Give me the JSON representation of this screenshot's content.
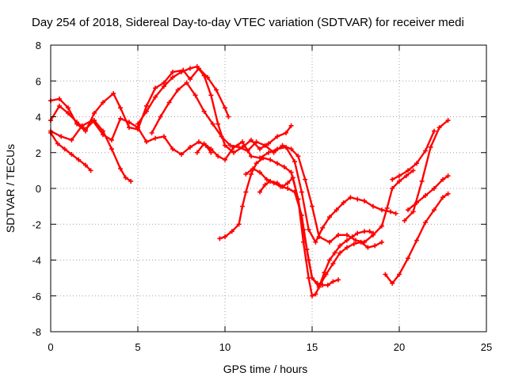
{
  "chart_data": {
    "type": "line",
    "title": "Day 254 of 2018, Sidereal Day-to-day VTEC variation (SDTVAR) for receiver medi",
    "xlabel": "GPS time / hours",
    "ylabel": "SDTVAR / TECUs",
    "xlim": [
      0,
      25
    ],
    "ylim": [
      -8,
      8
    ],
    "x_ticks": [
      "0",
      "5",
      "10",
      "15",
      "20",
      "25"
    ],
    "y_ticks": [
      "-8",
      "-6",
      "-4",
      "-2",
      "0",
      "2",
      "4",
      "6",
      "8"
    ],
    "grid": true,
    "legend": "none",
    "marker": "plus",
    "series_color": "#ff0000",
    "series": [
      {
        "x": [
          0.0,
          0.5,
          1.0,
          1.5,
          2.0,
          2.5,
          3.0,
          3.5,
          4.0,
          4.3,
          4.6
        ],
        "y": [
          3.8,
          4.6,
          4.2,
          3.7,
          3.3,
          3.8,
          3.2,
          2.2,
          1.1,
          0.6,
          0.4
        ]
      },
      {
        "x": [
          0.0,
          0.4,
          0.8,
          1.2,
          1.6,
          2.0,
          2.3
        ],
        "y": [
          3.1,
          2.5,
          2.2,
          1.9,
          1.6,
          1.3,
          1.0
        ]
      },
      {
        "x": [
          0.0,
          0.5,
          1.0,
          1.5,
          2.0,
          2.5,
          3.0,
          3.6,
          4.0,
          4.5,
          5.0,
          5.5,
          6.0,
          6.5,
          7.0,
          7.6,
          8.0,
          8.5,
          9.0,
          9.5,
          10.0,
          10.2
        ],
        "y": [
          4.9,
          5.0,
          4.5,
          3.6,
          3.2,
          4.2,
          4.8,
          5.3,
          4.5,
          3.4,
          3.3,
          4.6,
          5.6,
          5.9,
          6.5,
          6.6,
          6.1,
          6.7,
          6.2,
          5.5,
          4.5,
          4.0
        ]
      },
      {
        "x": [
          0.0,
          0.6,
          1.2,
          1.8,
          2.4,
          3.0,
          3.5,
          4.0,
          4.5,
          5.0,
          5.5,
          6.0,
          6.5,
          7.0,
          7.5,
          8.0,
          8.5,
          8.9,
          9.2
        ],
        "y": [
          3.2,
          2.9,
          2.7,
          3.5,
          3.8,
          3.0,
          2.7,
          3.9,
          3.7,
          3.4,
          2.6,
          2.8,
          2.9,
          2.2,
          1.9,
          2.3,
          2.6,
          2.4,
          2.0
        ]
      },
      {
        "x": [
          5.0,
          5.5,
          6.0,
          6.5,
          7.0,
          7.5,
          8.0,
          8.4,
          8.8,
          9.2,
          9.6,
          10.0,
          10.5,
          11.0,
          11.5,
          12.0,
          12.5,
          13.0,
          13.5,
          13.8
        ],
        "y": [
          3.6,
          4.3,
          5.1,
          5.7,
          6.2,
          6.5,
          6.7,
          6.8,
          6.3,
          5.2,
          3.6,
          2.4,
          2.0,
          2.3,
          2.7,
          2.2,
          2.5,
          2.9,
          3.1,
          3.5
        ]
      },
      {
        "x": [
          5.8,
          6.3,
          6.8,
          7.3,
          7.8,
          8.3,
          8.8,
          9.3,
          9.8,
          10.3,
          10.8,
          11.3,
          11.8,
          12.3,
          12.8,
          13.3,
          13.8,
          14.2,
          14.6,
          15.0,
          15.4,
          16.0,
          16.5,
          17.0,
          17.5,
          18.0,
          18.5,
          19.0,
          19.3,
          19.6,
          20.0,
          20.4,
          20.8
        ],
        "y": [
          3.1,
          4.0,
          4.8,
          5.5,
          5.9,
          5.2,
          4.3,
          3.6,
          2.9,
          2.4,
          2.3,
          2.1,
          2.6,
          2.4,
          2.0,
          2.4,
          2.2,
          1.8,
          0.5,
          -1.0,
          -2.7,
          -3.0,
          -2.6,
          -2.6,
          -2.9,
          -3.0,
          -2.6,
          -2.1,
          -1.1,
          0.0,
          0.4,
          0.7,
          1.0
        ]
      },
      {
        "x": [
          8.4,
          8.8,
          9.2,
          9.6,
          10.0,
          10.5,
          11.0,
          11.5,
          12.0,
          12.5,
          13.0,
          13.5,
          14.0,
          14.4,
          14.8,
          15.2,
          15.6,
          16.0,
          16.4,
          16.8,
          17.2,
          17.6,
          18.0,
          18.5,
          19.0,
          19.5,
          19.8
        ],
        "y": [
          2.0,
          2.5,
          2.2,
          1.8,
          1.6,
          2.3,
          2.6,
          1.8,
          1.7,
          2.0,
          2.2,
          2.3,
          1.5,
          -0.2,
          -2.3,
          -3.0,
          -2.2,
          -1.6,
          -1.2,
          -0.8,
          -0.5,
          -0.6,
          -0.7,
          -1.0,
          -1.2,
          -1.3,
          -1.4
        ]
      },
      {
        "x": [
          9.7,
          10.0,
          10.4,
          10.8,
          11.0,
          11.2,
          11.5,
          11.8,
          12.2,
          12.6,
          13.0,
          13.4,
          13.8,
          14.2,
          14.5,
          14.8,
          15.0,
          15.3,
          15.6,
          15.9,
          16.2,
          16.5
        ],
        "y": [
          -2.8,
          -2.7,
          -2.4,
          -2.0,
          -1.0,
          -0.2,
          0.8,
          1.4,
          1.7,
          1.6,
          1.4,
          1.2,
          0.9,
          -0.6,
          -2.3,
          -4.0,
          -5.0,
          -5.3,
          -5.4,
          -5.4,
          -5.2,
          -5.1
        ]
      },
      {
        "x": [
          11.2,
          11.6,
          12.0,
          12.4,
          12.8,
          13.2,
          13.6,
          14.0,
          14.4,
          14.7,
          15.0,
          15.4,
          15.8,
          16.2,
          16.6,
          17.0,
          17.4,
          17.8,
          18.2,
          18.6,
          19.0
        ],
        "y": [
          0.8,
          1.1,
          0.9,
          0.5,
          0.3,
          0.1,
          0.0,
          -0.2,
          -1.5,
          -3.4,
          -5.0,
          -5.5,
          -4.8,
          -4.2,
          -3.6,
          -3.3,
          -3.1,
          -3.0,
          -3.3,
          -3.2,
          -3.0
        ]
      },
      {
        "x": [
          12.0,
          12.3,
          12.6,
          13.0,
          13.3,
          13.6,
          13.9,
          14.2,
          14.5,
          14.8,
          15.0,
          15.2,
          15.4,
          15.7,
          16.0,
          16.3,
          16.6,
          17.0,
          17.3,
          17.6,
          18.0,
          18.3,
          18.5
        ],
        "y": [
          -0.2,
          0.2,
          0.4,
          0.3,
          0.1,
          0.3,
          0.6,
          -0.6,
          -3.0,
          -5.0,
          -6.0,
          -5.9,
          -5.5,
          -4.7,
          -4.0,
          -3.6,
          -3.2,
          -2.9,
          -2.7,
          -2.5,
          -2.4,
          -2.4,
          -2.5
        ]
      },
      {
        "x": [
          19.2,
          19.6,
          20.0,
          20.5,
          21.0,
          21.5,
          22.0,
          22.5,
          22.8
        ],
        "y": [
          -4.8,
          -5.3,
          -4.8,
          -3.9,
          -2.9,
          -1.9,
          -1.2,
          -0.5,
          -0.3
        ]
      },
      {
        "x": [
          20.5,
          21.0,
          21.5,
          22.0,
          22.5,
          22.8
        ],
        "y": [
          -1.2,
          -0.8,
          -0.4,
          0.0,
          0.5,
          0.7
        ]
      },
      {
        "x": [
          20.3,
          20.8,
          21.3,
          21.8,
          22.3,
          22.8
        ],
        "y": [
          -1.8,
          -1.3,
          0.4,
          2.3,
          3.4,
          3.8
        ]
      },
      {
        "x": [
          19.6,
          20.0,
          20.5,
          21.0,
          21.5,
          22.0
        ],
        "y": [
          0.5,
          0.7,
          1.0,
          1.4,
          2.1,
          3.2
        ]
      }
    ]
  }
}
